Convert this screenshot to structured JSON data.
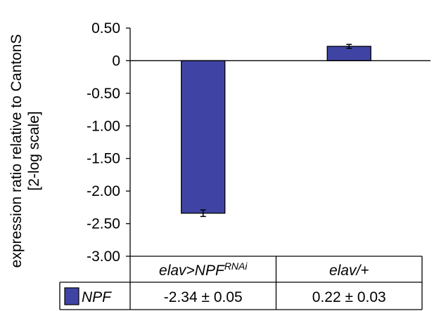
{
  "chart_data": {
    "type": "bar",
    "title": "",
    "ylabel_lines": [
      "expression ratio relative to CantonS",
      "[2-log scale]"
    ],
    "xlabel": "",
    "ylim": [
      -3.0,
      0.5
    ],
    "yticks": [
      0.5,
      0,
      -0.5,
      -1.0,
      -1.5,
      -2.0,
      -2.5,
      -3.0
    ],
    "ytick_labels": [
      "0.50",
      "0",
      "-0.50",
      "-1.00",
      "-1.50",
      "-2.00",
      "-2.50",
      "-3.00"
    ],
    "categories": [
      {
        "base": "elav>NPF",
        "sup": "RNAi"
      },
      {
        "base": "elav/+",
        "sup": ""
      }
    ],
    "series": [
      {
        "name": "NPF",
        "color": "#3f44a4",
        "values": [
          -2.34,
          0.22
        ],
        "errors": [
          0.05,
          0.03
        ],
        "table_values": [
          "-2.34 ± 0.05",
          "0.22 ± 0.03"
        ]
      }
    ],
    "grid": false,
    "legend": "data-table"
  }
}
